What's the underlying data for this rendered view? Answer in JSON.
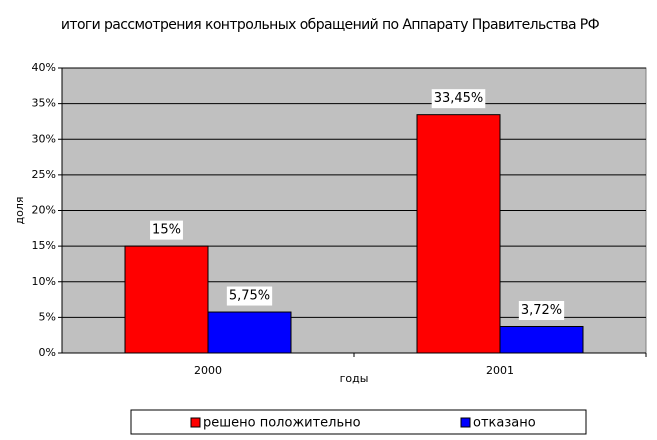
{
  "chart_data": {
    "type": "bar",
    "title": "итоги рассмотрения контрольных обращений по Аппарату Правительства РФ",
    "x_label": "годы",
    "y_label": "доля",
    "categories": [
      "2000",
      "2001"
    ],
    "series": [
      {
        "name": "решено положительно",
        "color": "#ff0000",
        "values": [
          15,
          33.45
        ],
        "value_labels": [
          "15%",
          "33,45%"
        ]
      },
      {
        "name": "отказано",
        "color": "#0000ff",
        "values": [
          5.75,
          3.72
        ],
        "value_labels": [
          "5,75%",
          "3,72%"
        ]
      }
    ],
    "ylim": [
      0,
      40
    ],
    "yticks": [
      {
        "value": 0,
        "label": "0%"
      },
      {
        "value": 5,
        "label": "5%"
      },
      {
        "value": 10,
        "label": "10%"
      },
      {
        "value": 15,
        "label": "15%"
      },
      {
        "value": 20,
        "label": "20%"
      },
      {
        "value": 25,
        "label": "25%"
      },
      {
        "value": 30,
        "label": "30%"
      },
      {
        "value": 35,
        "label": "35%"
      },
      {
        "value": 40,
        "label": "40%"
      }
    ],
    "grid": true,
    "legend": "bottom",
    "plot_background": "#c0c0c0"
  }
}
